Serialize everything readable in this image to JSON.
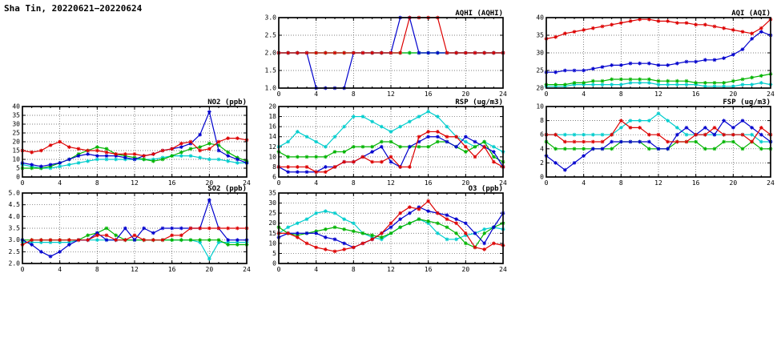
{
  "page": {
    "title": "Sha Tin, 20220621−20220624"
  },
  "chart_data": [
    {
      "id": "aqhi",
      "type": "line",
      "title": "AQHI (AQHI)",
      "marker": "asterisk",
      "xlim": [
        0,
        24
      ],
      "xticks": [
        0,
        4,
        8,
        12,
        16,
        20,
        24
      ],
      "ylim": [
        1.0,
        3.0
      ],
      "yticks": [
        1.0,
        1.5,
        2.0,
        2.5,
        3.0
      ],
      "ydecimals": 1,
      "x": [
        0,
        1,
        2,
        3,
        4,
        5,
        6,
        7,
        8,
        9,
        10,
        11,
        12,
        13,
        14,
        15,
        16,
        17,
        18,
        19,
        20,
        21,
        22,
        23,
        24
      ],
      "series": [
        {
          "name": "cyan",
          "color": "#00cdcd",
          "values": [
            2,
            2,
            2,
            2,
            2,
            2,
            2,
            2,
            2,
            2,
            2,
            2,
            2,
            2,
            2,
            2,
            2,
            2,
            2,
            2,
            2,
            2,
            2,
            2,
            2
          ]
        },
        {
          "name": "green",
          "color": "#00b400",
          "values": [
            2,
            2,
            2,
            2,
            2,
            2,
            2,
            2,
            2,
            2,
            2,
            2,
            2,
            2,
            2,
            2,
            2,
            2,
            2,
            2,
            2,
            2,
            2,
            2,
            2
          ]
        },
        {
          "name": "blue",
          "color": "#0000cd",
          "values": [
            2,
            2,
            2,
            2,
            1,
            1,
            1,
            1,
            2,
            2,
            2,
            2,
            2,
            3,
            3,
            2,
            2,
            2,
            2,
            2,
            2,
            2,
            2,
            2,
            2
          ]
        },
        {
          "name": "red",
          "color": "#dd0000",
          "values": [
            2,
            2,
            2,
            2,
            2,
            2,
            2,
            2,
            2,
            2,
            2,
            2,
            2,
            2,
            3,
            3,
            3,
            3,
            2,
            2,
            2,
            2,
            2,
            2,
            2
          ]
        }
      ]
    },
    {
      "id": "aqi",
      "type": "line",
      "title": "AQI (AQI)",
      "marker": "asterisk",
      "xlim": [
        0,
        24
      ],
      "xticks": [
        0,
        4,
        8,
        12,
        16,
        20,
        24
      ],
      "ylim": [
        20,
        40
      ],
      "yticks": [
        20,
        25,
        30,
        35,
        40
      ],
      "ydecimals": 0,
      "x": [
        0,
        1,
        2,
        3,
        4,
        5,
        6,
        7,
        8,
        9,
        10,
        11,
        12,
        13,
        14,
        15,
        16,
        17,
        18,
        19,
        20,
        21,
        22,
        23,
        24
      ],
      "series": [
        {
          "name": "cyan",
          "color": "#00cdcd",
          "values": [
            20.5,
            20.5,
            20.5,
            21,
            21,
            21,
            21,
            21,
            21,
            21.5,
            21.5,
            21.5,
            21,
            21,
            21,
            21,
            21,
            20.5,
            20.5,
            20.5,
            20.5,
            21,
            21,
            21.5,
            21
          ]
        },
        {
          "name": "green",
          "color": "#00b400",
          "values": [
            21,
            21,
            21,
            21.5,
            21.5,
            22,
            22,
            22.5,
            22.5,
            22.5,
            22.5,
            22.5,
            22,
            22,
            22,
            22,
            21.5,
            21.5,
            21.5,
            21.5,
            22,
            22.5,
            23,
            23.5,
            24
          ]
        },
        {
          "name": "blue",
          "color": "#0000cd",
          "values": [
            24.5,
            24.5,
            25,
            25,
            25,
            25.5,
            26,
            26.5,
            26.5,
            27,
            27,
            27,
            26.5,
            26.5,
            27,
            27.5,
            27.5,
            28,
            28,
            28.5,
            29.5,
            31,
            34,
            36,
            35
          ]
        },
        {
          "name": "red",
          "color": "#dd0000",
          "values": [
            34,
            34.5,
            35.5,
            36,
            36.5,
            37,
            37.5,
            38,
            38.5,
            39,
            39.5,
            39.5,
            39,
            39,
            38.5,
            38.5,
            38,
            38,
            37.5,
            37,
            36.5,
            36,
            35.5,
            37,
            39.5
          ]
        }
      ]
    },
    {
      "id": "no2",
      "type": "line",
      "title": "NO2 (ppb)",
      "marker": "asterisk",
      "xlim": [
        0,
        24
      ],
      "xticks": [
        0,
        4,
        8,
        12,
        16,
        20,
        24
      ],
      "ylim": [
        0,
        40
      ],
      "yticks": [
        0,
        5,
        10,
        15,
        20,
        25,
        30,
        35,
        40
      ],
      "ydecimals": 0,
      "x": [
        0,
        1,
        2,
        3,
        4,
        5,
        6,
        7,
        8,
        9,
        10,
        11,
        12,
        13,
        14,
        15,
        16,
        17,
        18,
        19,
        20,
        21,
        22,
        23,
        24
      ],
      "series": [
        {
          "name": "cyan",
          "color": "#00cdcd",
          "values": [
            7,
            6,
            5,
            5,
            6,
            7,
            8,
            9,
            10,
            10,
            10,
            10,
            10,
            10,
            10,
            11,
            12,
            12,
            12,
            11,
            10,
            10,
            9,
            8,
            8
          ]
        },
        {
          "name": "green",
          "color": "#00b400",
          "values": [
            5,
            5,
            5,
            6,
            8,
            10,
            13,
            15,
            17,
            16,
            13,
            12,
            11,
            10,
            9,
            10,
            12,
            14,
            16,
            17,
            19,
            18,
            14,
            11,
            9
          ]
        },
        {
          "name": "blue",
          "color": "#0000cd",
          "values": [
            8,
            7,
            6,
            7,
            8,
            10,
            12,
            13,
            12,
            12,
            12,
            11,
            10,
            12,
            13,
            15,
            16,
            17,
            19,
            24,
            37,
            15,
            12,
            10,
            8
          ]
        },
        {
          "name": "red",
          "color": "#dd0000",
          "values": [
            15,
            14,
            15,
            18,
            20,
            17,
            16,
            15,
            15,
            14,
            13,
            13,
            13,
            12,
            13,
            15,
            16,
            19,
            20,
            15,
            16,
            20,
            22,
            22,
            21
          ]
        }
      ]
    },
    {
      "id": "rsp",
      "type": "line",
      "title": "RSP (ug/m3)",
      "marker": "asterisk",
      "xlim": [
        0,
        24
      ],
      "xticks": [
        0,
        4,
        8,
        12,
        16,
        20,
        24
      ],
      "ylim": [
        6,
        20
      ],
      "yticks": [
        6,
        8,
        10,
        12,
        14,
        16,
        18,
        20
      ],
      "ydecimals": 0,
      "x": [
        0,
        1,
        2,
        3,
        4,
        5,
        6,
        7,
        8,
        9,
        10,
        11,
        12,
        13,
        14,
        15,
        16,
        17,
        18,
        19,
        20,
        21,
        22,
        23,
        24
      ],
      "series": [
        {
          "name": "cyan",
          "color": "#00cdcd",
          "values": [
            12,
            13,
            15,
            14,
            13,
            12,
            14,
            16,
            18,
            18,
            17,
            16,
            15,
            16,
            17,
            18,
            19,
            18,
            16,
            14,
            13,
            12,
            13,
            12,
            11
          ]
        },
        {
          "name": "green",
          "color": "#00b400",
          "values": [
            11,
            10,
            10,
            10,
            10,
            10,
            11,
            11,
            12,
            12,
            12,
            13,
            13,
            12,
            12,
            12,
            12,
            13,
            13,
            12,
            11,
            12,
            13,
            10,
            9
          ]
        },
        {
          "name": "blue",
          "color": "#0000cd",
          "values": [
            8,
            7,
            7,
            7,
            7,
            8,
            8,
            9,
            9,
            10,
            11,
            12,
            9,
            8,
            12,
            13,
            14,
            14,
            13,
            12,
            14,
            13,
            12,
            11,
            8
          ]
        },
        {
          "name": "red",
          "color": "#dd0000",
          "values": [
            8,
            8,
            8,
            8,
            7,
            7,
            8,
            9,
            9,
            10,
            9,
            9,
            10,
            8,
            8,
            14,
            15,
            15,
            14,
            14,
            12,
            10,
            12,
            9,
            8
          ]
        }
      ]
    },
    {
      "id": "fsp",
      "type": "line",
      "title": "FSP (ug/m3)",
      "marker": "asterisk",
      "xlim": [
        0,
        24
      ],
      "xticks": [
        0,
        4,
        8,
        12,
        16,
        20,
        24
      ],
      "ylim": [
        0,
        10
      ],
      "yticks": [
        0,
        2,
        4,
        6,
        8,
        10
      ],
      "ydecimals": 0,
      "x": [
        0,
        1,
        2,
        3,
        4,
        5,
        6,
        7,
        8,
        9,
        10,
        11,
        12,
        13,
        14,
        15,
        16,
        17,
        18,
        19,
        20,
        21,
        22,
        23,
        24
      ],
      "series": [
        {
          "name": "cyan",
          "color": "#00cdcd",
          "values": [
            6,
            6,
            6,
            6,
            6,
            6,
            6,
            6,
            7,
            8,
            8,
            8,
            9,
            8,
            7,
            6,
            6,
            6,
            6,
            6,
            6,
            6,
            6,
            5,
            5
          ]
        },
        {
          "name": "green",
          "color": "#00b400",
          "values": [
            5,
            4,
            4,
            4,
            4,
            4,
            4,
            4,
            5,
            5,
            5,
            4,
            4,
            4,
            5,
            5,
            5,
            4,
            4,
            5,
            5,
            4,
            5,
            4,
            4
          ]
        },
        {
          "name": "blue",
          "color": "#0000cd",
          "values": [
            3,
            2,
            1,
            2,
            3,
            4,
            4,
            5,
            5,
            5,
            5,
            5,
            4,
            4,
            6,
            7,
            6,
            7,
            6,
            8,
            7,
            8,
            7,
            6,
            5
          ]
        },
        {
          "name": "red",
          "color": "#dd0000",
          "values": [
            6,
            6,
            5,
            5,
            5,
            5,
            5,
            6,
            8,
            7,
            7,
            6,
            6,
            5,
            5,
            5,
            6,
            6,
            7,
            6,
            6,
            6,
            5,
            7,
            6
          ]
        }
      ]
    },
    {
      "id": "so2",
      "type": "line",
      "title": "SO2 (ppb)",
      "marker": "asterisk",
      "xlim": [
        0,
        24
      ],
      "xticks": [
        0,
        4,
        8,
        12,
        16,
        20,
        24
      ],
      "ylim": [
        2.0,
        5.0
      ],
      "yticks": [
        2.0,
        2.5,
        3.0,
        3.5,
        4.0,
        4.5,
        5.0
      ],
      "ydecimals": 1,
      "x": [
        0,
        1,
        2,
        3,
        4,
        5,
        6,
        7,
        8,
        9,
        10,
        11,
        12,
        13,
        14,
        15,
        16,
        17,
        18,
        19,
        20,
        21,
        22,
        23,
        24
      ],
      "series": [
        {
          "name": "cyan",
          "color": "#00cdcd",
          "values": [
            2.9,
            2.9,
            2.9,
            2.9,
            2.9,
            2.9,
            3.0,
            3.0,
            3.0,
            3.0,
            3.0,
            3.0,
            3.0,
            3.0,
            3.0,
            3.0,
            3.0,
            3.0,
            3.0,
            2.9,
            2.2,
            2.9,
            2.9,
            2.9,
            2.9
          ]
        },
        {
          "name": "green",
          "color": "#00b400",
          "values": [
            3.0,
            3.0,
            3.0,
            3.0,
            3.0,
            3.0,
            3.0,
            3.2,
            3.3,
            3.5,
            3.2,
            3.0,
            3.0,
            3.0,
            3.0,
            3.0,
            3.0,
            3.0,
            3.0,
            3.0,
            3.0,
            3.0,
            2.8,
            2.8,
            2.8
          ]
        },
        {
          "name": "blue",
          "color": "#0000cd",
          "values": [
            3.0,
            2.8,
            2.5,
            2.3,
            2.5,
            2.8,
            3.0,
            3.0,
            3.3,
            3.0,
            3.0,
            3.5,
            3.0,
            3.5,
            3.3,
            3.5,
            3.5,
            3.5,
            3.5,
            3.5,
            4.7,
            3.5,
            3.0,
            3.0,
            3.0
          ]
        },
        {
          "name": "red",
          "color": "#dd0000",
          "values": [
            2.8,
            3.0,
            3.0,
            3.0,
            3.0,
            3.0,
            3.0,
            3.0,
            3.2,
            3.2,
            3.0,
            3.0,
            3.2,
            3.0,
            3.0,
            3.0,
            3.2,
            3.2,
            3.5,
            3.5,
            3.5,
            3.5,
            3.5,
            3.5,
            3.5
          ]
        }
      ]
    },
    {
      "id": "o3",
      "type": "line",
      "title": "O3 (ppb)",
      "marker": "asterisk",
      "xlim": [
        0,
        24
      ],
      "xticks": [
        0,
        4,
        8,
        12,
        16,
        20,
        24
      ],
      "ylim": [
        0,
        35
      ],
      "yticks": [
        0,
        5,
        10,
        15,
        20,
        25,
        30,
        35
      ],
      "ydecimals": 0,
      "x": [
        0,
        1,
        2,
        3,
        4,
        5,
        6,
        7,
        8,
        9,
        10,
        11,
        12,
        13,
        14,
        15,
        16,
        17,
        18,
        19,
        20,
        21,
        22,
        23,
        24
      ],
      "series": [
        {
          "name": "cyan",
          "color": "#00cdcd",
          "values": [
            15,
            18,
            20,
            22,
            25,
            26,
            25,
            22,
            20,
            15,
            13,
            12,
            15,
            18,
            20,
            22,
            20,
            15,
            12,
            12,
            14,
            15,
            17,
            18,
            17
          ]
        },
        {
          "name": "green",
          "color": "#00b400",
          "values": [
            18,
            15,
            14,
            15,
            16,
            17,
            18,
            17,
            16,
            15,
            14,
            13,
            15,
            18,
            20,
            22,
            21,
            20,
            18,
            15,
            10,
            8,
            15,
            18,
            20
          ]
        },
        {
          "name": "blue",
          "color": "#0000cd",
          "values": [
            13,
            15,
            15,
            15,
            15,
            13,
            12,
            10,
            8,
            10,
            12,
            15,
            18,
            22,
            25,
            28,
            26,
            25,
            24,
            22,
            20,
            15,
            10,
            18,
            25
          ]
        },
        {
          "name": "red",
          "color": "#dd0000",
          "values": [
            15,
            15,
            13,
            10,
            8,
            7,
            6,
            7,
            8,
            10,
            12,
            15,
            20,
            25,
            28,
            27,
            31,
            25,
            22,
            20,
            15,
            8,
            7,
            10,
            9
          ]
        }
      ]
    }
  ]
}
